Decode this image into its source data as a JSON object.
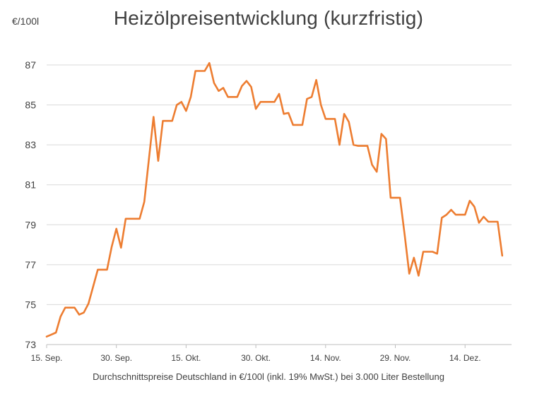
{
  "chart_data": {
    "type": "line",
    "title": "Heizölpreisentwicklung (kurzfristig)",
    "ylabel": "€/100l",
    "xlabel": "Durchschnittspreise Deutschland in €/100l (inkl. 19% MwSt.) bei 3.000 Liter Bestellung",
    "ylim": [
      73,
      87
    ],
    "yticks": [
      73,
      75,
      77,
      79,
      81,
      83,
      85,
      87
    ],
    "xlim": [
      "2021-09-15",
      "2021-12-24"
    ],
    "xticks": [
      {
        "date": "2021-09-15",
        "label": "15. Sep."
      },
      {
        "date": "2021-09-30",
        "label": "30. Sep."
      },
      {
        "date": "2021-10-15",
        "label": "15. Okt."
      },
      {
        "date": "2021-10-30",
        "label": "30. Okt."
      },
      {
        "date": "2021-11-14",
        "label": "14. Nov."
      },
      {
        "date": "2021-11-29",
        "label": "29. Nov."
      },
      {
        "date": "2021-12-14",
        "label": "14. Dez."
      }
    ],
    "grid": true,
    "color": "#ED7D31",
    "series": [
      {
        "points": [
          [
            "2021-09-15",
            73.4
          ],
          [
            "2021-09-16",
            73.5
          ],
          [
            "2021-09-17",
            73.6
          ],
          [
            "2021-09-18",
            74.4
          ],
          [
            "2021-09-19",
            74.85
          ],
          [
            "2021-09-20",
            74.85
          ],
          [
            "2021-09-21",
            74.85
          ],
          [
            "2021-09-22",
            74.5
          ],
          [
            "2021-09-23",
            74.6
          ],
          [
            "2021-09-24",
            75.05
          ],
          [
            "2021-09-25",
            75.9
          ],
          [
            "2021-09-26",
            76.75
          ],
          [
            "2021-09-27",
            76.75
          ],
          [
            "2021-09-28",
            76.75
          ],
          [
            "2021-09-29",
            77.9
          ],
          [
            "2021-09-30",
            78.8
          ],
          [
            "2021-10-01",
            77.85
          ],
          [
            "2021-10-02",
            79.3
          ],
          [
            "2021-10-03",
            79.3
          ],
          [
            "2021-10-04",
            79.3
          ],
          [
            "2021-10-05",
            79.3
          ],
          [
            "2021-10-06",
            80.15
          ],
          [
            "2021-10-07",
            82.3
          ],
          [
            "2021-10-08",
            84.4
          ],
          [
            "2021-10-09",
            82.2
          ],
          [
            "2021-10-10",
            84.2
          ],
          [
            "2021-10-11",
            84.2
          ],
          [
            "2021-10-12",
            84.2
          ],
          [
            "2021-10-13",
            85.0
          ],
          [
            "2021-10-14",
            85.15
          ],
          [
            "2021-10-15",
            84.7
          ],
          [
            "2021-10-16",
            85.4
          ],
          [
            "2021-10-17",
            86.7
          ],
          [
            "2021-10-18",
            86.7
          ],
          [
            "2021-10-19",
            86.7
          ],
          [
            "2021-10-20",
            87.1
          ],
          [
            "2021-10-21",
            86.1
          ],
          [
            "2021-10-22",
            85.7
          ],
          [
            "2021-10-23",
            85.85
          ],
          [
            "2021-10-24",
            85.4
          ],
          [
            "2021-10-25",
            85.4
          ],
          [
            "2021-10-26",
            85.4
          ],
          [
            "2021-10-27",
            85.95
          ],
          [
            "2021-10-28",
            86.2
          ],
          [
            "2021-10-29",
            85.9
          ],
          [
            "2021-10-30",
            84.8
          ],
          [
            "2021-10-31",
            85.15
          ],
          [
            "2021-11-01",
            85.15
          ],
          [
            "2021-11-02",
            85.15
          ],
          [
            "2021-11-03",
            85.15
          ],
          [
            "2021-11-04",
            85.55
          ],
          [
            "2021-11-05",
            84.55
          ],
          [
            "2021-11-06",
            84.6
          ],
          [
            "2021-11-07",
            84.0
          ],
          [
            "2021-11-08",
            84.0
          ],
          [
            "2021-11-09",
            84.0
          ],
          [
            "2021-11-10",
            85.3
          ],
          [
            "2021-11-11",
            85.4
          ],
          [
            "2021-11-12",
            86.25
          ],
          [
            "2021-11-13",
            85.0
          ],
          [
            "2021-11-14",
            84.3
          ],
          [
            "2021-11-15",
            84.3
          ],
          [
            "2021-11-16",
            84.3
          ],
          [
            "2021-11-17",
            83.0
          ],
          [
            "2021-11-18",
            84.55
          ],
          [
            "2021-11-19",
            84.15
          ],
          [
            "2021-11-20",
            83.0
          ],
          [
            "2021-11-21",
            82.95
          ],
          [
            "2021-11-22",
            82.95
          ],
          [
            "2021-11-23",
            82.95
          ],
          [
            "2021-11-24",
            82.0
          ],
          [
            "2021-11-25",
            81.65
          ],
          [
            "2021-11-26",
            83.55
          ],
          [
            "2021-11-27",
            83.3
          ],
          [
            "2021-11-28",
            80.35
          ],
          [
            "2021-11-29",
            80.35
          ],
          [
            "2021-11-30",
            80.35
          ],
          [
            "2021-12-01",
            78.5
          ],
          [
            "2021-12-02",
            76.55
          ],
          [
            "2021-12-03",
            77.35
          ],
          [
            "2021-12-04",
            76.45
          ],
          [
            "2021-12-05",
            77.65
          ],
          [
            "2021-12-06",
            77.65
          ],
          [
            "2021-12-07",
            77.65
          ],
          [
            "2021-12-08",
            77.55
          ],
          [
            "2021-12-09",
            79.35
          ],
          [
            "2021-12-10",
            79.5
          ],
          [
            "2021-12-11",
            79.75
          ],
          [
            "2021-12-12",
            79.5
          ],
          [
            "2021-12-13",
            79.5
          ],
          [
            "2021-12-14",
            79.5
          ],
          [
            "2021-12-15",
            80.2
          ],
          [
            "2021-12-16",
            79.9
          ],
          [
            "2021-12-17",
            79.1
          ],
          [
            "2021-12-18",
            79.4
          ],
          [
            "2021-12-19",
            79.15
          ],
          [
            "2021-12-20",
            79.15
          ],
          [
            "2021-12-21",
            79.15
          ],
          [
            "2021-12-22",
            77.45
          ]
        ]
      }
    ]
  }
}
